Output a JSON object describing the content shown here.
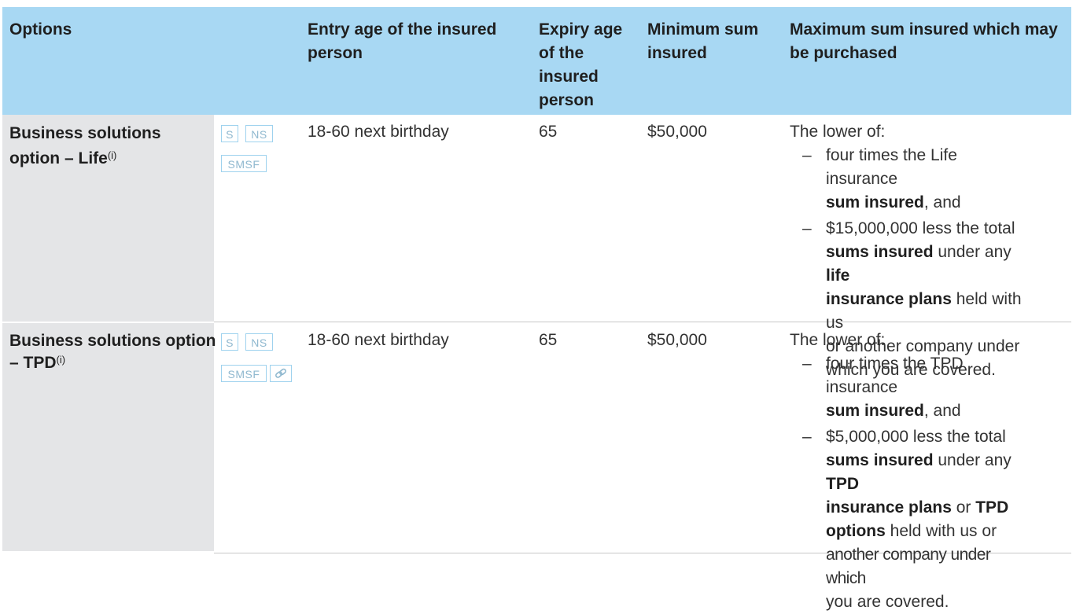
{
  "table": {
    "headers": {
      "options": "Options",
      "entry_age": [
        "Entry age of the insured",
        "person"
      ],
      "expiry_age": [
        "Expiry age",
        "of the",
        "insured",
        "person"
      ],
      "min_sum": [
        "Minimum sum",
        "insured"
      ],
      "max_sum": [
        "Maximum sum insured which may",
        "be purchased"
      ]
    },
    "rows": [
      {
        "option_lines": [
          "Business solutions",
          "option – Life"
        ],
        "footnote": "(i)",
        "badges": [
          "S",
          "NS",
          "SMSF"
        ],
        "entry_age": "18-60 next birthday",
        "expiry_age": "65",
        "min_sum": "$50,000",
        "max_intro": "The lower of:",
        "max_items": [
          {
            "dash": "–",
            "lines": [
              "four times the Life insurance",
              "sum insured, and"
            ]
          },
          {
            "dash": "–",
            "lines": [
              "$15,000,000 less the total",
              "sums insured under any life",
              "insurance plans held with us",
              "or another company under",
              "which you are covered."
            ]
          }
        ]
      },
      {
        "option_lines": [
          "Business solutions option",
          "– TPD"
        ],
        "footnote": "(i)",
        "badges": [
          "S",
          "NS",
          "SMSF",
          "link-icon"
        ],
        "entry_age": "18-60 next birthday",
        "expiry_age": "65",
        "min_sum": "$50,000",
        "max_intro": "The lower of:",
        "max_items": [
          {
            "dash": "–",
            "lines": [
              "four times the TPD insurance",
              "sum insured, and"
            ]
          },
          {
            "dash": "–",
            "lines": [
              "$5,000,000 less the total",
              "sums insured under any TPD",
              "insurance plans or TPD",
              "options held with us or",
              "another company under which",
              "you are covered."
            ]
          }
        ]
      }
    ]
  },
  "bold_terms": [
    "sum insured",
    "sums insured",
    "life",
    "insurance plans",
    "TPD",
    "TPD",
    "options"
  ],
  "colors": {
    "header_bg": "#a8d8f3",
    "option_bg": "#e4e5e7",
    "badge_border": "#9ed2ee"
  }
}
